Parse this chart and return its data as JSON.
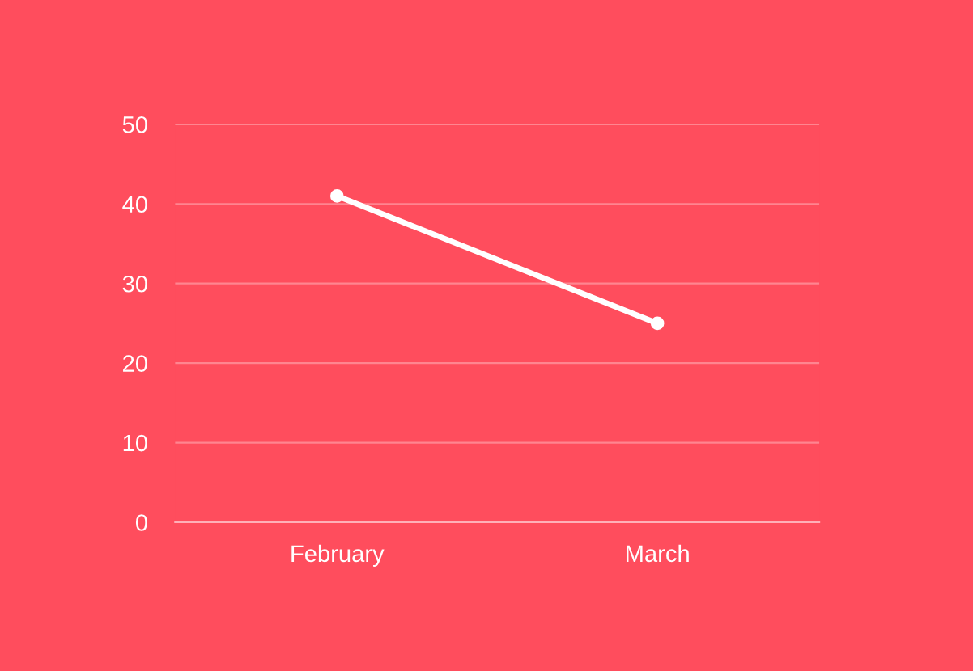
{
  "chart_data": {
    "type": "line",
    "categories": [
      "February",
      "March"
    ],
    "series": [
      {
        "color": "#ffffff",
        "values": [
          41,
          25
        ]
      }
    ],
    "ylim": [
      0,
      50
    ],
    "yticks": [
      0,
      10,
      20,
      30,
      40,
      50
    ],
    "grid": "y",
    "marker": "circle",
    "line_style": "solid"
  }
}
